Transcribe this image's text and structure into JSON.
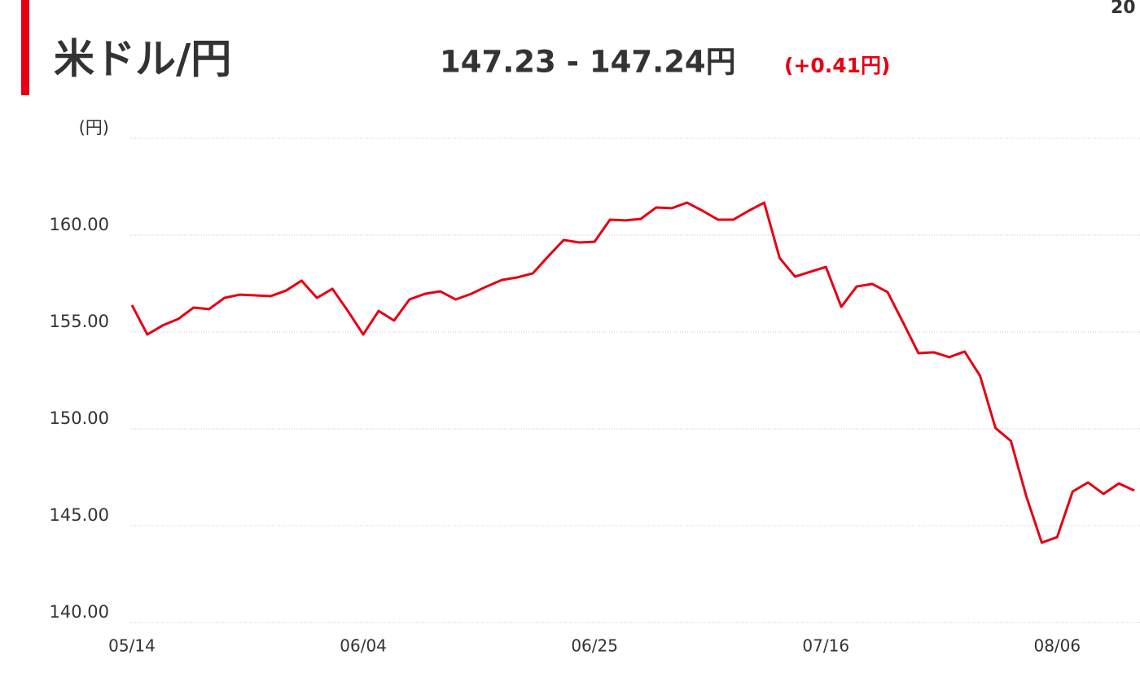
{
  "header": {
    "title": "米ドル/円",
    "price": "147.23 - 147.24円",
    "change": "(+0.41円)",
    "corner_text": "20"
  },
  "chart_data": {
    "type": "line",
    "categories": [
      "05/14",
      null,
      null,
      null,
      null,
      null,
      null,
      null,
      null,
      null,
      null,
      null,
      null,
      null,
      null,
      "06/04",
      null,
      null,
      null,
      null,
      null,
      null,
      null,
      null,
      null,
      null,
      null,
      null,
      null,
      null,
      "06/25",
      null,
      null,
      null,
      null,
      null,
      null,
      null,
      null,
      null,
      null,
      null,
      null,
      null,
      null,
      "07/16",
      null,
      null,
      null,
      null,
      null,
      null,
      null,
      null,
      null,
      null,
      null,
      null,
      null,
      null,
      "08/06",
      null,
      null,
      null,
      null,
      null
    ],
    "values": [
      156.39,
      154.87,
      155.34,
      155.67,
      156.26,
      156.18,
      156.76,
      156.93,
      156.89,
      156.85,
      157.14,
      157.65,
      156.76,
      157.23,
      156.09,
      154.87,
      156.09,
      155.59,
      156.68,
      156.97,
      157.1,
      156.68,
      156.97,
      157.35,
      157.69,
      157.82,
      158.03,
      158.91,
      159.75,
      159.62,
      159.66,
      160.8,
      160.76,
      160.84,
      161.43,
      161.39,
      161.68,
      161.26,
      160.8,
      160.8,
      161.26,
      161.68,
      158.82,
      157.86,
      158.11,
      158.36,
      156.3,
      157.35,
      157.48,
      157.06,
      155.5,
      153.91,
      153.95,
      153.7,
      153.99,
      152.73,
      150.04,
      149.37,
      146.51,
      144.12,
      144.41,
      146.76,
      147.23,
      146.64,
      147.18,
      146.81
    ],
    "color": "#e60012",
    "ylim": [
      140,
      165
    ],
    "yticks": [
      {
        "value": 140,
        "label": "140.00"
      },
      {
        "value": 145,
        "label": "145.00"
      },
      {
        "value": 150,
        "label": "150.00"
      },
      {
        "value": 155,
        "label": "155.00"
      },
      {
        "value": 160,
        "label": "160.00"
      },
      {
        "value": 165,
        "label": "(円)"
      }
    ],
    "grid": true
  }
}
